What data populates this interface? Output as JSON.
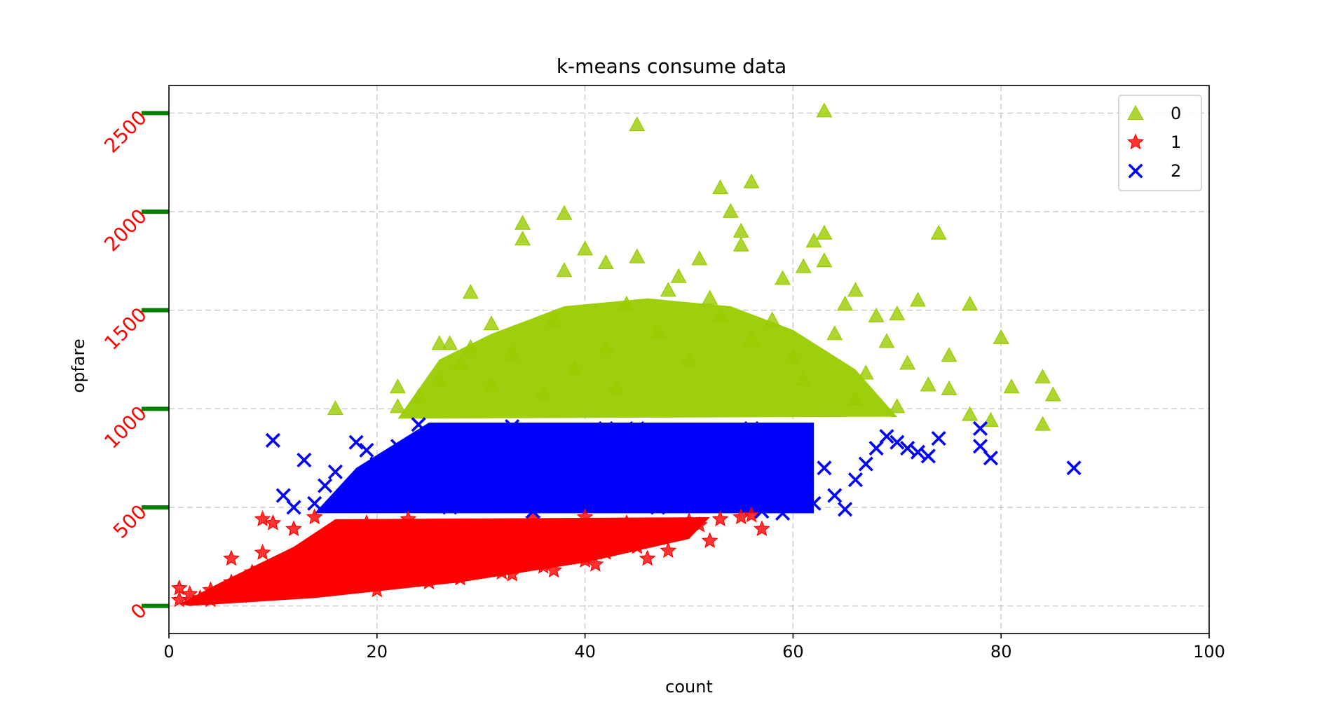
{
  "chart_data": {
    "type": "scatter",
    "title": "k-means consume data",
    "xlabel": "count",
    "ylabel": "opfare",
    "xlim": [
      0,
      100
    ],
    "ylim": [
      -140,
      2640
    ],
    "xticks": [
      0,
      20,
      40,
      60,
      80,
      100
    ],
    "yticks": [
      0,
      500,
      1000,
      1500,
      2000,
      2500
    ],
    "xtick_labels": [
      "0",
      "20",
      "40",
      "60",
      "80",
      "100"
    ],
    "ytick_labels": [
      "0",
      "500",
      "1000",
      "1500",
      "2000",
      "2500"
    ],
    "ytick_label_color": "#ff0000",
    "ytick_label_rotation": 45,
    "ytick_mark_color": "#008000",
    "grid": true,
    "legend_position": "top-right",
    "series": [
      {
        "name": "0",
        "marker": "triangle",
        "color": "#99cc00",
        "points": [
          [
            63,
            2510
          ],
          [
            45,
            2440
          ],
          [
            56,
            2150
          ],
          [
            53,
            2120
          ],
          [
            54,
            2000
          ],
          [
            38,
            1990
          ],
          [
            34,
            1940
          ],
          [
            55,
            1900
          ],
          [
            63,
            1890
          ],
          [
            74,
            1890
          ],
          [
            34,
            1860
          ],
          [
            62,
            1850
          ],
          [
            55,
            1830
          ],
          [
            40,
            1810
          ],
          [
            45,
            1770
          ],
          [
            51,
            1760
          ],
          [
            63,
            1750
          ],
          [
            42,
            1740
          ],
          [
            61,
            1720
          ],
          [
            38,
            1700
          ],
          [
            49,
            1670
          ],
          [
            59,
            1660
          ],
          [
            66,
            1600
          ],
          [
            29,
            1590
          ],
          [
            72,
            1550
          ],
          [
            77,
            1530
          ],
          [
            65,
            1530
          ],
          [
            70,
            1480
          ],
          [
            68,
            1470
          ],
          [
            31,
            1430
          ],
          [
            80,
            1360
          ],
          [
            26,
            1330
          ],
          [
            69,
            1340
          ],
          [
            75,
            1270
          ],
          [
            27,
            1330
          ],
          [
            29,
            1310
          ],
          [
            84,
            1160
          ],
          [
            81,
            1110
          ],
          [
            22,
            1110
          ],
          [
            75,
            1100
          ],
          [
            85,
            1070
          ],
          [
            16,
            1000
          ],
          [
            22,
            1010
          ],
          [
            79,
            940
          ],
          [
            84,
            920
          ],
          [
            28,
            1230
          ],
          [
            33,
            1280
          ],
          [
            37,
            1450
          ],
          [
            44,
            1530
          ],
          [
            48,
            1600
          ],
          [
            52,
            1560
          ],
          [
            58,
            1450
          ],
          [
            64,
            1380
          ],
          [
            71,
            1230
          ],
          [
            77,
            970
          ],
          [
            31,
            1120
          ],
          [
            36,
            1080
          ],
          [
            42,
            1310
          ],
          [
            47,
            1390
          ],
          [
            53,
            1470
          ],
          [
            60,
            1260
          ],
          [
            67,
            1180
          ],
          [
            24,
            1060
          ],
          [
            26,
            1140
          ],
          [
            73,
            1120
          ],
          [
            70,
            1010
          ],
          [
            39,
            1200
          ],
          [
            43,
            1110
          ],
          [
            50,
            1250
          ],
          [
            56,
            1350
          ],
          [
            61,
            1150
          ],
          [
            66,
            1050
          ]
        ]
      },
      {
        "name": "1",
        "marker": "star",
        "color": "#ff0000",
        "points": [
          [
            1,
            30
          ],
          [
            2,
            60
          ],
          [
            1,
            90
          ],
          [
            3,
            40
          ],
          [
            4,
            80
          ],
          [
            5,
            60
          ],
          [
            6,
            120
          ],
          [
            6,
            240
          ],
          [
            8,
            170
          ],
          [
            9,
            270
          ],
          [
            10,
            420
          ],
          [
            9,
            440
          ],
          [
            12,
            390
          ],
          [
            14,
            450
          ],
          [
            17,
            380
          ],
          [
            20,
            310
          ],
          [
            22,
            350
          ],
          [
            18,
            200
          ],
          [
            24,
            180
          ],
          [
            26,
            230
          ],
          [
            30,
            210
          ],
          [
            33,
            160
          ],
          [
            36,
            200
          ],
          [
            38,
            250
          ],
          [
            40,
            230
          ],
          [
            42,
            270
          ],
          [
            45,
            300
          ],
          [
            47,
            350
          ],
          [
            49,
            380
          ],
          [
            51,
            410
          ],
          [
            52,
            330
          ],
          [
            56,
            460
          ],
          [
            57,
            390
          ],
          [
            50,
            430
          ],
          [
            44,
            420
          ],
          [
            36,
            360
          ],
          [
            30,
            330
          ],
          [
            27,
            290
          ],
          [
            24,
            270
          ],
          [
            16,
            160
          ],
          [
            12,
            120
          ],
          [
            15,
            100
          ],
          [
            10,
            70
          ],
          [
            7,
            50
          ],
          [
            4,
            30
          ],
          [
            20,
            80
          ],
          [
            25,
            120
          ],
          [
            28,
            140
          ],
          [
            32,
            170
          ],
          [
            37,
            180
          ],
          [
            41,
            210
          ],
          [
            46,
            240
          ],
          [
            13,
            260
          ],
          [
            19,
            420
          ],
          [
            23,
            440
          ],
          [
            35,
            440
          ],
          [
            40,
            450
          ],
          [
            11,
            180
          ],
          [
            8,
            100
          ],
          [
            14,
            300
          ],
          [
            21,
            230
          ],
          [
            29,
            380
          ],
          [
            34,
            300
          ],
          [
            39,
            340
          ],
          [
            43,
            320
          ],
          [
            48,
            280
          ],
          [
            53,
            440
          ],
          [
            55,
            450
          ]
        ]
      },
      {
        "name": "2",
        "marker": "x",
        "color": "#0000ff",
        "points": [
          [
            10,
            840
          ],
          [
            11,
            560
          ],
          [
            12,
            500
          ],
          [
            15,
            610
          ],
          [
            16,
            680
          ],
          [
            18,
            830
          ],
          [
            19,
            790
          ],
          [
            22,
            810
          ],
          [
            24,
            920
          ],
          [
            26,
            760
          ],
          [
            30,
            700
          ],
          [
            34,
            820
          ],
          [
            38,
            860
          ],
          [
            42,
            900
          ],
          [
            46,
            780
          ],
          [
            50,
            700
          ],
          [
            54,
            620
          ],
          [
            58,
            520
          ],
          [
            59,
            470
          ],
          [
            61,
            600
          ],
          [
            62,
            520
          ],
          [
            64,
            560
          ],
          [
            65,
            490
          ],
          [
            66,
            640
          ],
          [
            68,
            800
          ],
          [
            70,
            830
          ],
          [
            71,
            800
          ],
          [
            72,
            780
          ],
          [
            74,
            850
          ],
          [
            73,
            760
          ],
          [
            78,
            900
          ],
          [
            78,
            810
          ],
          [
            79,
            750
          ],
          [
            87,
            700
          ],
          [
            57,
            480
          ],
          [
            55,
            510
          ],
          [
            53,
            560
          ],
          [
            48,
            600
          ],
          [
            44,
            560
          ],
          [
            40,
            520
          ],
          [
            36,
            560
          ],
          [
            32,
            600
          ],
          [
            28,
            640
          ],
          [
            24,
            680
          ],
          [
            20,
            720
          ],
          [
            17,
            560
          ],
          [
            14,
            520
          ],
          [
            13,
            740
          ],
          [
            21,
            580
          ],
          [
            25,
            540
          ],
          [
            29,
            880
          ],
          [
            33,
            910
          ],
          [
            37,
            680
          ],
          [
            41,
            640
          ],
          [
            45,
            900
          ],
          [
            49,
            880
          ],
          [
            52,
            820
          ],
          [
            56,
            900
          ],
          [
            60,
            760
          ],
          [
            63,
            700
          ],
          [
            67,
            720
          ],
          [
            69,
            860
          ],
          [
            35,
            480
          ],
          [
            27,
            500
          ],
          [
            23,
            620
          ],
          [
            47,
            500
          ],
          [
            51,
            660
          ],
          [
            39,
            780
          ]
        ]
      }
    ]
  }
}
